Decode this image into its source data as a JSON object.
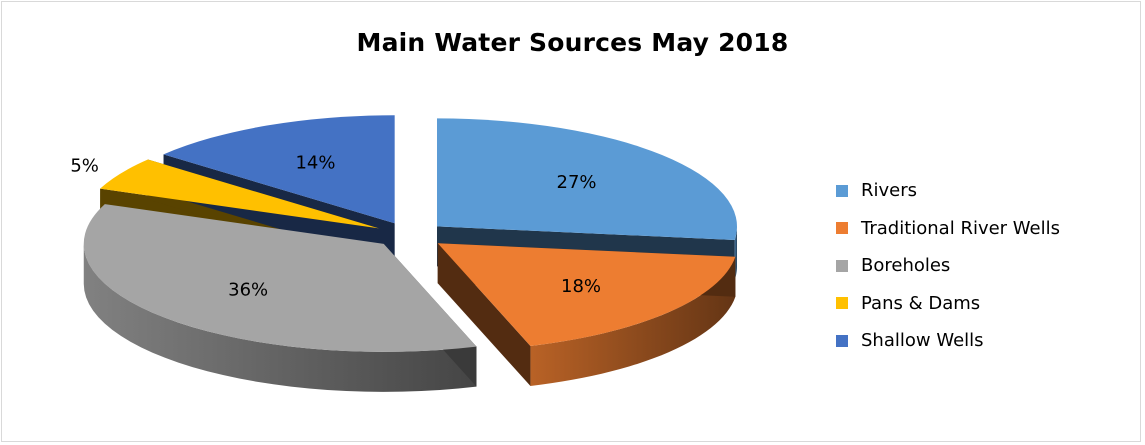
{
  "chart_data": {
    "type": "pie",
    "title": "Main Water Sources May 2018",
    "legend_position": "right",
    "exploded": true,
    "three_d": true,
    "slices": [
      {
        "label": "Rivers",
        "value": 27,
        "display": "27%",
        "color": "#5b9bd5"
      },
      {
        "label": "Traditional River Wells",
        "value": 18,
        "display": "18%",
        "color": "#ed7d31"
      },
      {
        "label": "Boreholes",
        "value": 36,
        "display": "36%",
        "color": "#a5a5a5"
      },
      {
        "label": "Pans & Dams",
        "value": 5,
        "display": "5%",
        "color": "#ffc000"
      },
      {
        "label": "Shallow Wells",
        "value": 14,
        "display": "14%",
        "color": "#4472c4"
      }
    ]
  }
}
